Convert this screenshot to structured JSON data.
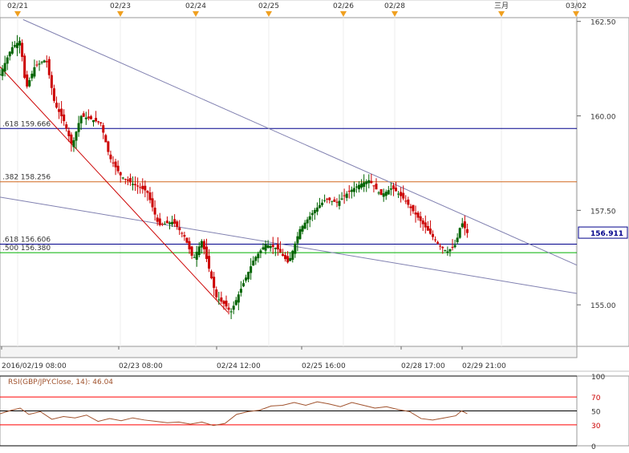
{
  "chart_data": [
    {
      "type": "candlestick",
      "symbol_hint": "GBP/JPY",
      "event_markers": [
        "02/21",
        "02/23",
        "02/24",
        "02/25",
        "02/26",
        "02/28",
        "三月",
        "03/02"
      ],
      "x_ticks": [
        "2016/02/19 08:00",
        "02/23 08:00",
        "02/24 12:00",
        "02/25 16:00",
        "02/28 17:00",
        "02/29 21:00"
      ],
      "y_ticks": [
        "162.50",
        "160.00",
        "157.50",
        "155.00"
      ],
      "ylim": [
        153.9,
        162.6
      ],
      "current_price": "156.911",
      "fib_levels": [
        {
          "label": ".618  159.666",
          "value": 159.666,
          "color": "#00008b"
        },
        {
          "label": ".382  158.256",
          "value": 158.256,
          "color": "#d2691e"
        },
        {
          "label": ".618  156.606",
          "value": 156.606,
          "color": "#00008b"
        },
        {
          "label": ".500  156.380",
          "value": 156.38,
          "color": "#00b000"
        }
      ],
      "trendlines": [
        {
          "name": "upper-trendline",
          "from": [
            0.04,
            162.55
          ],
          "to": [
            1.0,
            156.05
          ],
          "color": "#8080b0"
        },
        {
          "name": "lower-trendline",
          "from": [
            0.0,
            157.85
          ],
          "to": [
            1.0,
            155.3
          ],
          "color": "#8080b0"
        },
        {
          "name": "swing-line",
          "from": [
            0.0,
            161.3
          ],
          "to": [
            0.395,
            154.8
          ],
          "color": "#cc0000"
        }
      ],
      "path": [
        [
          0.0,
          161.1
        ],
        [
          0.02,
          161.8
        ],
        [
          0.035,
          162.0
        ],
        [
          0.045,
          160.7
        ],
        [
          0.06,
          161.3
        ],
        [
          0.08,
          161.5
        ],
        [
          0.095,
          160.3
        ],
        [
          0.11,
          159.9
        ],
        [
          0.125,
          159.2
        ],
        [
          0.14,
          160.0
        ],
        [
          0.16,
          159.9
        ],
        [
          0.175,
          159.8
        ],
        [
          0.19,
          158.9
        ],
        [
          0.21,
          158.4
        ],
        [
          0.23,
          158.2
        ],
        [
          0.255,
          158.0
        ],
        [
          0.275,
          157.1
        ],
        [
          0.3,
          157.2
        ],
        [
          0.32,
          156.8
        ],
        [
          0.335,
          156.2
        ],
        [
          0.35,
          156.7
        ],
        [
          0.365,
          155.8
        ],
        [
          0.375,
          155.2
        ],
        [
          0.39,
          155.0
        ],
        [
          0.4,
          154.8
        ],
        [
          0.42,
          155.5
        ],
        [
          0.44,
          156.2
        ],
        [
          0.46,
          156.6
        ],
        [
          0.48,
          156.5
        ],
        [
          0.5,
          156.1
        ],
        [
          0.52,
          157.0
        ],
        [
          0.545,
          157.5
        ],
        [
          0.565,
          157.8
        ],
        [
          0.585,
          157.7
        ],
        [
          0.605,
          158.0
        ],
        [
          0.625,
          158.2
        ],
        [
          0.64,
          158.3
        ],
        [
          0.66,
          157.9
        ],
        [
          0.68,
          158.1
        ],
        [
          0.7,
          157.8
        ],
        [
          0.72,
          157.4
        ],
        [
          0.74,
          157.0
        ],
        [
          0.76,
          156.6
        ],
        [
          0.775,
          156.4
        ],
        [
          0.79,
          156.6
        ],
        [
          0.8,
          157.2
        ],
        [
          0.81,
          156.9
        ]
      ]
    },
    {
      "type": "line",
      "title": "RSI(GBP/JPY.Close, 14): 46.04",
      "y_ticks": [
        "100",
        "70",
        "50",
        "30",
        "0"
      ],
      "ylim": [
        0,
        100
      ],
      "reference_lines": [
        {
          "value": 100,
          "color": "#000000"
        },
        {
          "value": 70,
          "color": "#ff0000"
        },
        {
          "value": 50,
          "color": "#000000"
        },
        {
          "value": 30,
          "color": "#ff0000"
        },
        {
          "value": 0,
          "color": "#000000"
        }
      ],
      "series_color": "#a0522d",
      "path": [
        [
          0.0,
          46
        ],
        [
          0.02,
          51
        ],
        [
          0.035,
          54
        ],
        [
          0.05,
          45
        ],
        [
          0.07,
          49
        ],
        [
          0.09,
          38
        ],
        [
          0.11,
          42
        ],
        [
          0.13,
          40
        ],
        [
          0.15,
          44
        ],
        [
          0.17,
          35
        ],
        [
          0.19,
          39
        ],
        [
          0.21,
          36
        ],
        [
          0.23,
          40
        ],
        [
          0.25,
          37
        ],
        [
          0.27,
          35
        ],
        [
          0.29,
          33
        ],
        [
          0.31,
          34
        ],
        [
          0.33,
          31
        ],
        [
          0.35,
          34
        ],
        [
          0.37,
          29
        ],
        [
          0.39,
          32
        ],
        [
          0.41,
          45
        ],
        [
          0.43,
          49
        ],
        [
          0.45,
          51
        ],
        [
          0.47,
          57
        ],
        [
          0.49,
          58
        ],
        [
          0.51,
          62
        ],
        [
          0.53,
          58
        ],
        [
          0.55,
          63
        ],
        [
          0.57,
          60
        ],
        [
          0.59,
          56
        ],
        [
          0.61,
          62
        ],
        [
          0.63,
          58
        ],
        [
          0.65,
          54
        ],
        [
          0.67,
          56
        ],
        [
          0.69,
          52
        ],
        [
          0.71,
          49
        ],
        [
          0.73,
          39
        ],
        [
          0.75,
          37
        ],
        [
          0.77,
          40
        ],
        [
          0.79,
          43
        ],
        [
          0.8,
          50
        ],
        [
          0.81,
          46
        ]
      ]
    }
  ]
}
